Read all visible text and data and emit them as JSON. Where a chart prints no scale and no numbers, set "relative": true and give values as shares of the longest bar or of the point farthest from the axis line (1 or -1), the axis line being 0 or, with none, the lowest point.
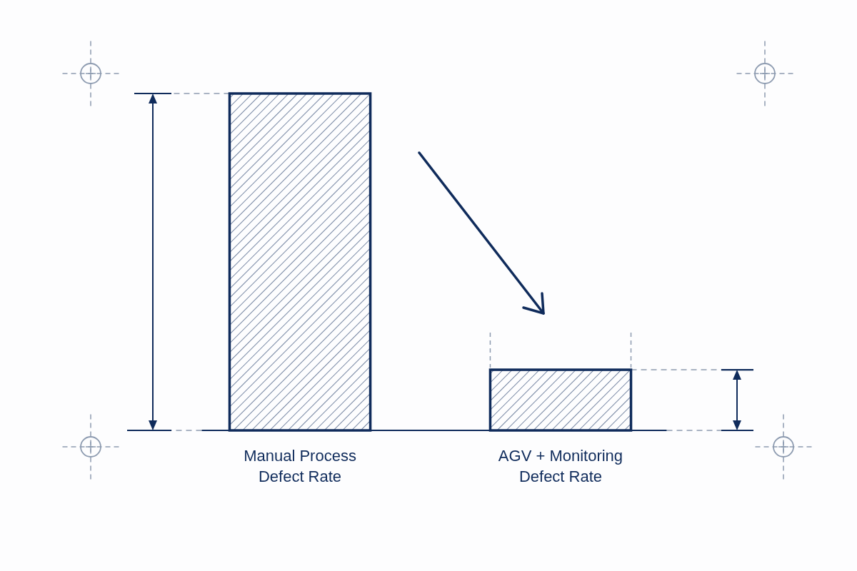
{
  "chart_data": {
    "type": "bar",
    "categories": [
      "Manual Process Defect Rate",
      "AGV + Monitoring Defect Rate"
    ],
    "values": [
      1,
      0.18
    ],
    "color": "#0f2b5b",
    "relative": true
  }
}
